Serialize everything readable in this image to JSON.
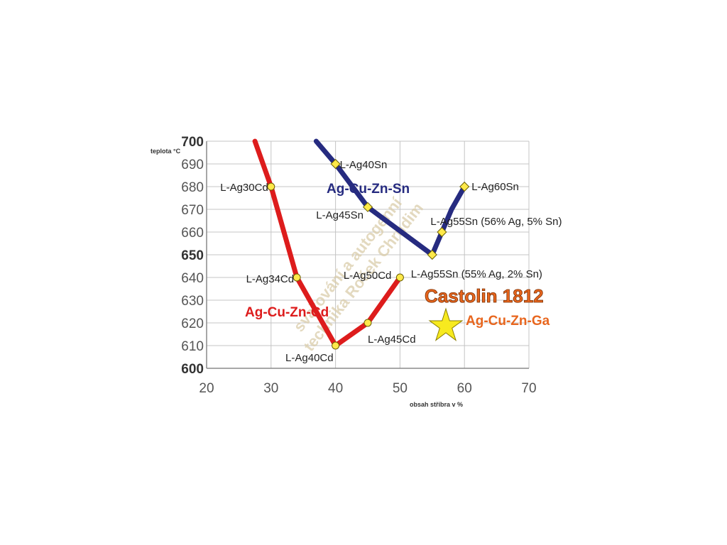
{
  "chart_data": {
    "type": "line",
    "xlabel": "obsah stříbra v %",
    "ylabel": "teplota °C",
    "xlim": [
      20,
      70
    ],
    "ylim": [
      600,
      700
    ],
    "x_ticks": [
      20,
      30,
      40,
      50,
      60,
      70
    ],
    "y_ticks": [
      600,
      610,
      620,
      630,
      640,
      650,
      660,
      670,
      680,
      690,
      700
    ],
    "grid": true,
    "series": [
      {
        "name": "Ag-Cu-Zn-Cd",
        "color": "#dd1c1c",
        "x": [
          27.5,
          30,
          34,
          40,
          45,
          50
        ],
        "y": [
          700,
          680,
          640,
          610,
          620,
          640
        ],
        "labels": [
          "",
          "L-Ag30Cd",
          "L-Ag34Cd",
          "L-Ag40Cd",
          "L-Ag45Cd",
          "L-Ag50Cd"
        ]
      },
      {
        "name": "Ag-Cu-Zn-Sn",
        "color": "#262b80",
        "x": [
          37,
          40,
          45,
          55,
          56.5,
          58,
          60
        ],
        "y": [
          700,
          690,
          671,
          650,
          660,
          670,
          680
        ],
        "labels": [
          "",
          "L-Ag40Sn",
          "L-Ag45Sn",
          "L-Ag55Sn (55% Ag, 2% Sn)",
          "L-Ag55Sn (56% Ag, 5% Sn)",
          "",
          "L-Ag60Sn"
        ]
      }
    ],
    "annotations": {
      "brand": "Castolin 1812",
      "brand_alloy": "Ag-Cu-Zn-Ga",
      "brand_color": "#e8661e",
      "star_color": "#f7ea1f",
      "watermark_line1": "svařování a autogenní",
      "watermark_line2": "technika Roček Chrudim"
    }
  }
}
